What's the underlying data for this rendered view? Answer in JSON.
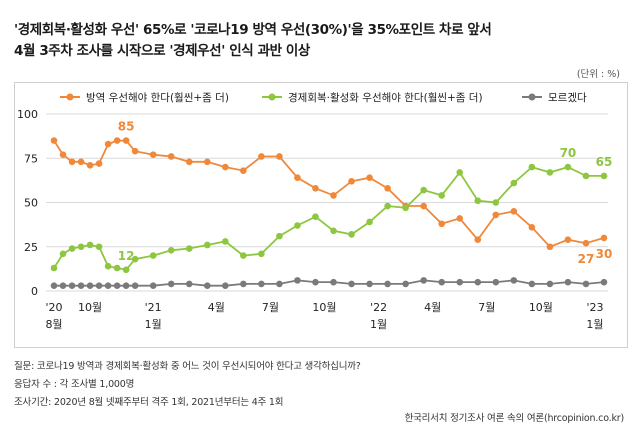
{
  "title": {
    "line1": "'경제회복·활성화 우선' 65%로 '코로나19 방역 우선(30%)'을 35%포인트 차로 앞서",
    "line2": "4월 3주차 조사를 시작으로 '경제우선' 인식 과반 이상"
  },
  "unit": "(단위 : %)",
  "notes": {
    "question": "질문:  코로나19 방역과 경제회복·활성화 중 어느 것이 우선시되어야 한다고 생각하십니까?",
    "sample": "응답자 수 : 각 조사별 1,000명",
    "period": "조사기간:  2020년 8월 넷째주부터 격주 1회, 2021년부터는 4주 1회"
  },
  "source": "한국리서치 정기조사 여론 속의 여론(hrcopinion.co.kr)",
  "colors": {
    "quarantine": "#f0883a",
    "economy": "#8dc63f",
    "unknown": "#7a7a7a",
    "grid": "#d9d9d9"
  },
  "chart_data": {
    "type": "line",
    "title": "",
    "xlabel": "",
    "ylabel": "",
    "ylim": [
      0,
      100
    ],
    "yticks": [
      0,
      25,
      50,
      75,
      100
    ],
    "grid": true,
    "legend_position": "top",
    "x_tick_labels": [
      {
        "index": 0,
        "line1": "'20",
        "line2": "8월"
      },
      {
        "index": 4,
        "line1": "10월",
        "line2": ""
      },
      {
        "index": 11,
        "line1": "'21",
        "line2": "1월"
      },
      {
        "index": 18,
        "line1": "4월",
        "line2": ""
      },
      {
        "index": 24,
        "line1": "7월",
        "line2": ""
      },
      {
        "index": 30,
        "line1": "10월",
        "line2": ""
      },
      {
        "index": 36,
        "line1": "'22",
        "line2": "1월"
      },
      {
        "index": 42,
        "line1": "4월",
        "line2": ""
      },
      {
        "index": 48,
        "line1": "7월",
        "line2": ""
      },
      {
        "index": 54,
        "line1": "10월",
        "line2": ""
      },
      {
        "index": 60,
        "line1": "'23",
        "line2": "1월"
      }
    ],
    "series": [
      {
        "key": "quarantine",
        "name": "방역 우선해야 한다(훨씬+좀 더)",
        "points": [
          [
            0,
            85
          ],
          [
            1,
            77
          ],
          [
            2,
            73
          ],
          [
            3,
            73
          ],
          [
            4,
            71
          ],
          [
            5,
            72
          ],
          [
            6,
            83
          ],
          [
            7,
            85
          ],
          [
            8,
            85
          ],
          [
            9,
            79
          ],
          [
            11,
            77
          ],
          [
            13,
            76
          ],
          [
            15,
            73
          ],
          [
            17,
            73
          ],
          [
            19,
            70
          ],
          [
            21,
            68
          ],
          [
            23,
            76
          ],
          [
            25,
            76
          ],
          [
            27,
            64
          ],
          [
            29,
            58
          ],
          [
            31,
            54
          ],
          [
            33,
            62
          ],
          [
            35,
            64
          ],
          [
            37,
            58
          ],
          [
            39,
            48
          ],
          [
            41,
            48
          ],
          [
            43,
            38
          ],
          [
            45,
            41
          ],
          [
            47,
            29
          ],
          [
            49,
            43
          ],
          [
            51,
            45
          ],
          [
            53,
            36
          ],
          [
            55,
            25
          ],
          [
            57,
            29
          ],
          [
            59,
            27
          ],
          [
            61,
            30
          ]
        ]
      },
      {
        "key": "economy",
        "name": "경제회복·활성화 우선해야 한다(훨씬+좀 더)",
        "points": [
          [
            0,
            13
          ],
          [
            1,
            21
          ],
          [
            2,
            24
          ],
          [
            3,
            25
          ],
          [
            4,
            26
          ],
          [
            5,
            25
          ],
          [
            6,
            14
          ],
          [
            7,
            13
          ],
          [
            8,
            12
          ],
          [
            9,
            18
          ],
          [
            11,
            20
          ],
          [
            13,
            23
          ],
          [
            15,
            24
          ],
          [
            17,
            26
          ],
          [
            19,
            28
          ],
          [
            21,
            20
          ],
          [
            23,
            21
          ],
          [
            25,
            31
          ],
          [
            27,
            37
          ],
          [
            29,
            42
          ],
          [
            31,
            34
          ],
          [
            33,
            32
          ],
          [
            35,
            39
          ],
          [
            37,
            48
          ],
          [
            39,
            47
          ],
          [
            41,
            57
          ],
          [
            43,
            54
          ],
          [
            45,
            67
          ],
          [
            47,
            51
          ],
          [
            49,
            50
          ],
          [
            51,
            61
          ],
          [
            53,
            70
          ],
          [
            55,
            67
          ],
          [
            57,
            70
          ],
          [
            59,
            65
          ],
          [
            61,
            65
          ]
        ]
      },
      {
        "key": "unknown",
        "name": "모르겠다",
        "points": [
          [
            0,
            3
          ],
          [
            1,
            3
          ],
          [
            2,
            3
          ],
          [
            3,
            3
          ],
          [
            4,
            3
          ],
          [
            5,
            3
          ],
          [
            6,
            3
          ],
          [
            7,
            3
          ],
          [
            8,
            3
          ],
          [
            9,
            3
          ],
          [
            11,
            3
          ],
          [
            13,
            4
          ],
          [
            15,
            4
          ],
          [
            17,
            3
          ],
          [
            19,
            3
          ],
          [
            21,
            4
          ],
          [
            23,
            4
          ],
          [
            25,
            4
          ],
          [
            27,
            6
          ],
          [
            29,
            5
          ],
          [
            31,
            5
          ],
          [
            33,
            4
          ],
          [
            35,
            4
          ],
          [
            37,
            4
          ],
          [
            39,
            4
          ],
          [
            41,
            6
          ],
          [
            43,
            5
          ],
          [
            45,
            5
          ],
          [
            47,
            5
          ],
          [
            49,
            5
          ],
          [
            51,
            6
          ],
          [
            53,
            4
          ],
          [
            55,
            4
          ],
          [
            57,
            5
          ],
          [
            59,
            4
          ],
          [
            61,
            5
          ]
        ]
      }
    ],
    "annotations": [
      {
        "series": "quarantine",
        "point_index": 8,
        "text": "85",
        "placement": "above"
      },
      {
        "series": "economy",
        "point_index": 8,
        "text": "12",
        "placement": "above"
      },
      {
        "series": "economy",
        "point_index": 57,
        "text": "70",
        "placement": "above"
      },
      {
        "series": "economy",
        "point_index": 61,
        "text": "65",
        "placement": "above"
      },
      {
        "series": "quarantine",
        "point_index": 59,
        "text": "27",
        "placement": "below"
      },
      {
        "series": "quarantine",
        "point_index": 61,
        "text": "30",
        "placement": "below"
      }
    ]
  }
}
